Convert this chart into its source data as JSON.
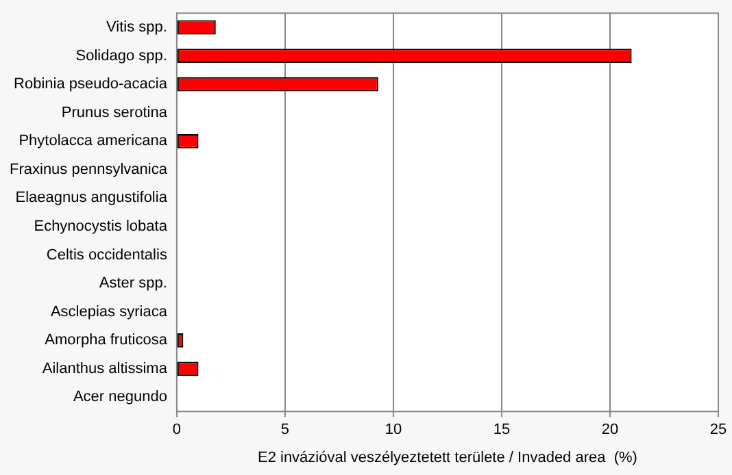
{
  "chart_data": {
    "type": "bar",
    "orientation": "horizontal",
    "xlabel": "E2 invázióval veszélyeztetett területe / Invaded area  (%)",
    "categories": [
      "Vitis spp.",
      "Solidago spp.",
      "Robinia pseudo-acacia",
      "Prunus serotina",
      "Phytolacca americana",
      "Fraxinus pennsylvanica",
      "Elaeagnus angustifolia",
      "Echynocystis lobata",
      "Celtis occidentalis",
      "Aster spp.",
      "Asclepias syriaca",
      "Amorpha fruticosa",
      "Ailanthus altissima",
      "Acer negundo"
    ],
    "values": [
      1.8,
      21.0,
      9.3,
      0,
      1.0,
      0,
      0,
      0,
      0,
      0,
      0,
      0.3,
      1.0,
      0
    ],
    "color": "#ff0000",
    "xlim": [
      0,
      25
    ],
    "xticks": [
      0,
      5,
      10,
      15,
      20,
      25
    ],
    "grid": "x",
    "legend": false
  }
}
